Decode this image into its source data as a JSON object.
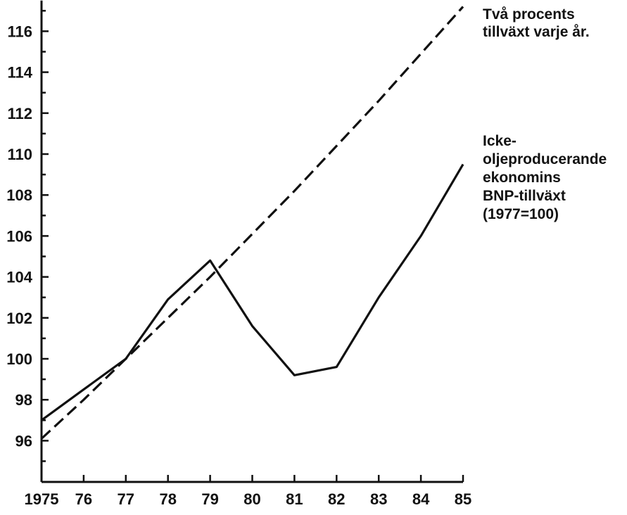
{
  "chart_data": {
    "type": "line",
    "x": [
      1975,
      1976,
      1977,
      1978,
      1979,
      1980,
      1981,
      1982,
      1983,
      1984,
      1985
    ],
    "x_tick_labels": [
      "1975",
      "76",
      "77",
      "78",
      "79",
      "80",
      "81",
      "82",
      "83",
      "84",
      "85"
    ],
    "y_tick_labels": [
      "96",
      "98",
      "100",
      "102",
      "104",
      "106",
      "108",
      "110",
      "112",
      "114",
      "116"
    ],
    "y_ticks": [
      96,
      98,
      100,
      102,
      104,
      106,
      108,
      110,
      112,
      114,
      116
    ],
    "ylim": [
      94,
      117.5
    ],
    "grid": false,
    "legend": "none",
    "series": [
      {
        "name": "Icke-oljeproducerande ekonomins BNP-tillväxt (1977=100)",
        "style": "solid",
        "color": "#111111",
        "values": [
          97.0,
          98.5,
          100.0,
          102.9,
          104.8,
          101.6,
          99.2,
          99.6,
          103.0,
          106.0,
          109.5
        ]
      },
      {
        "name": "Två procents tillväxt varje år.",
        "style": "dashed",
        "color": "#111111",
        "values": [
          96.1,
          98.0,
          100.0,
          102.0,
          104.0,
          106.1,
          108.2,
          110.4,
          112.6,
          114.9,
          117.2
        ]
      }
    ],
    "annotations": {
      "dashed_label_lines": [
        "Två procents",
        "tillväxt varje år."
      ],
      "solid_label_lines": [
        "Icke-",
        "oljeproducerande",
        "ekonomins",
        "BNP-tillväxt",
        "(1977=100)"
      ]
    }
  }
}
